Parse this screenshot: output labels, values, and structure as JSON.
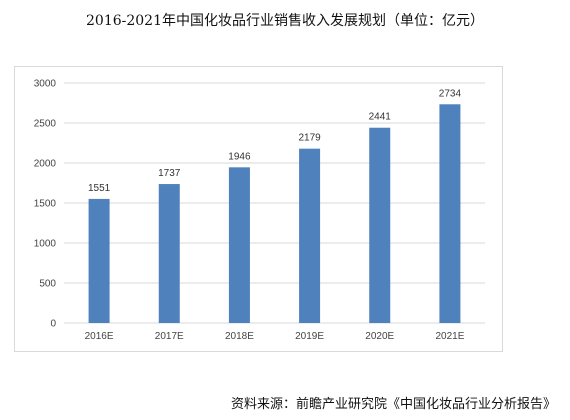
{
  "title": "2016-2021年中国化妆品行业销售收入发展规划（单位：亿元）",
  "source": "资料来源：前瞻产业研究院《中国化妆品行业分析报告》",
  "chart_data": {
    "type": "bar",
    "title": "2016-2021年中国化妆品行业销售收入发展规划（单位：亿元）",
    "categories": [
      "2016E",
      "2017E",
      "2018E",
      "2019E",
      "2020E",
      "2021E"
    ],
    "values": [
      1551,
      1737,
      1946,
      2179,
      2441,
      2734
    ],
    "data_labels": [
      "1551",
      "1737",
      "1946",
      "2179",
      "2441",
      "2734"
    ],
    "yticks": [
      0,
      500,
      1000,
      1500,
      2000,
      2500,
      3000
    ],
    "ytick_labels": [
      "0",
      "500",
      "1000",
      "1500",
      "2000",
      "2500",
      "3000"
    ],
    "ylim": [
      0,
      3000
    ],
    "grid": true,
    "legend": "none",
    "bar_color": "#4f81bd",
    "grid_color": "#d9d9d9"
  }
}
